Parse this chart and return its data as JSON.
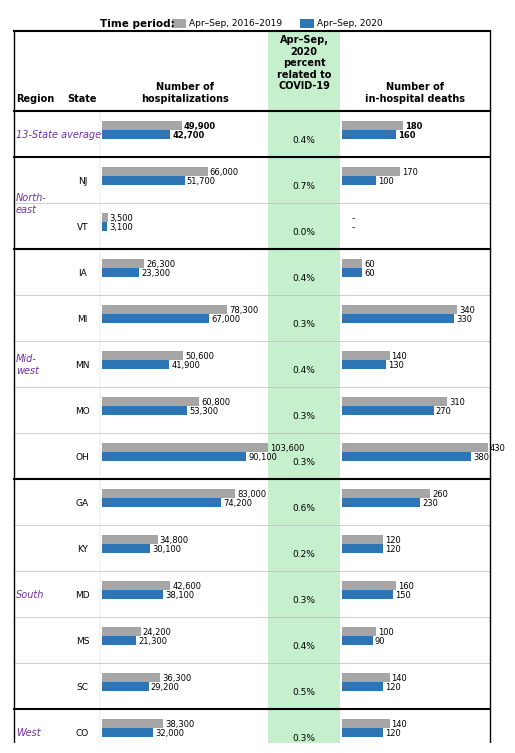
{
  "title_period_label": "Time period:",
  "legend_gray": "Apr–Sep, 2016–2019",
  "legend_blue": "Apr–Sep, 2020",
  "col_header_hosp": "Number of\nhospitalizations",
  "col_header_covid": "Apr–Sep,\n2020\npercent\nrelated to\nCOVID-19",
  "col_header_deaths": "Number of\nin-hospital deaths",
  "col_region": "Region",
  "col_state": "State",
  "rows": [
    {
      "region": "13-State average",
      "state": "",
      "hosp_gray": 49900,
      "hosp_blue": 42700,
      "covid_pct": "0.4%",
      "deaths_gray": 180,
      "deaths_blue": 160,
      "is_average": true,
      "region_span": 1,
      "region_start": true
    },
    {
      "region": "North-\neast",
      "state": "NJ",
      "hosp_gray": 66000,
      "hosp_blue": 51700,
      "covid_pct": "0.7%",
      "deaths_gray": 170,
      "deaths_blue": 100,
      "is_average": false,
      "region_span": 2,
      "region_start": true
    },
    {
      "region": "",
      "state": "VT",
      "hosp_gray": 3500,
      "hosp_blue": 3100,
      "covid_pct": "0.0%",
      "deaths_gray": null,
      "deaths_blue": null,
      "is_average": false,
      "region_span": 0,
      "region_start": false
    },
    {
      "region": "Mid-\nwest",
      "state": "IA",
      "hosp_gray": 26300,
      "hosp_blue": 23300,
      "covid_pct": "0.4%",
      "deaths_gray": 60,
      "deaths_blue": 60,
      "is_average": false,
      "region_span": 5,
      "region_start": true
    },
    {
      "region": "",
      "state": "MI",
      "hosp_gray": 78300,
      "hosp_blue": 67000,
      "covid_pct": "0.3%",
      "deaths_gray": 340,
      "deaths_blue": 330,
      "is_average": false,
      "region_span": 0,
      "region_start": false
    },
    {
      "region": "",
      "state": "MN",
      "hosp_gray": 50600,
      "hosp_blue": 41900,
      "covid_pct": "0.4%",
      "deaths_gray": 140,
      "deaths_blue": 130,
      "is_average": false,
      "region_span": 0,
      "region_start": false
    },
    {
      "region": "",
      "state": "MO",
      "hosp_gray": 60800,
      "hosp_blue": 53300,
      "covid_pct": "0.3%",
      "deaths_gray": 310,
      "deaths_blue": 270,
      "is_average": false,
      "region_span": 0,
      "region_start": false
    },
    {
      "region": "",
      "state": "OH",
      "hosp_gray": 103600,
      "hosp_blue": 90100,
      "covid_pct": "0.3%",
      "deaths_gray": 430,
      "deaths_blue": 380,
      "is_average": false,
      "region_span": 0,
      "region_start": false
    },
    {
      "region": "South",
      "state": "GA",
      "hosp_gray": 83000,
      "hosp_blue": 74200,
      "covid_pct": "0.6%",
      "deaths_gray": 260,
      "deaths_blue": 230,
      "is_average": false,
      "region_span": 5,
      "region_start": true
    },
    {
      "region": "",
      "state": "KY",
      "hosp_gray": 34800,
      "hosp_blue": 30100,
      "covid_pct": "0.2%",
      "deaths_gray": 120,
      "deaths_blue": 120,
      "is_average": false,
      "region_span": 0,
      "region_start": false
    },
    {
      "region": "",
      "state": "MD",
      "hosp_gray": 42600,
      "hosp_blue": 38100,
      "covid_pct": "0.3%",
      "deaths_gray": 160,
      "deaths_blue": 150,
      "is_average": false,
      "region_span": 0,
      "region_start": false
    },
    {
      "region": "",
      "state": "MS",
      "hosp_gray": 24200,
      "hosp_blue": 21300,
      "covid_pct": "0.4%",
      "deaths_gray": 100,
      "deaths_blue": 90,
      "is_average": false,
      "region_span": 0,
      "region_start": false
    },
    {
      "region": "",
      "state": "SC",
      "hosp_gray": 36300,
      "hosp_blue": 29200,
      "covid_pct": "0.5%",
      "deaths_gray": 140,
      "deaths_blue": 120,
      "is_average": false,
      "region_span": 0,
      "region_start": false
    },
    {
      "region": "West",
      "state": "CO",
      "hosp_gray": 38300,
      "hosp_blue": 32000,
      "covid_pct": "0.3%",
      "deaths_gray": 140,
      "deaths_blue": 120,
      "is_average": false,
      "region_span": 1,
      "region_start": true
    }
  ],
  "thick_border_after": [
    0,
    2,
    7,
    12
  ],
  "color_gray": "#a6a6a6",
  "color_blue": "#2e75b6",
  "color_green_bg": "#c6efce",
  "color_region_text": "#7030a0",
  "hosp_max": 103600,
  "deaths_max": 430
}
